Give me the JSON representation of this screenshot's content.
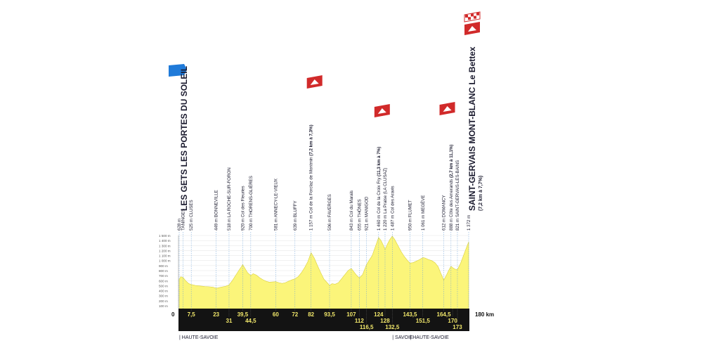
{
  "chart_data": {
    "type": "area",
    "title": "",
    "xlabel": "",
    "ylabel": "",
    "x_unit": "km",
    "xlim": [
      0,
      180
    ],
    "ylim": [
      100,
      1500
    ],
    "y_ticks": [
      "100 m",
      "200 m",
      "300 m",
      "400 m",
      "500 m",
      "600 m",
      "700 m",
      "800 m",
      "900 m",
      "1 000 m",
      "1 100 m",
      "1 200 m",
      "1 300 m",
      "1 400 m",
      "1 500 m"
    ],
    "fill_color": "#fbf57a",
    "km_start_label": "0",
    "km_end_label": "180 km",
    "start": {
      "name": "LES GETS LES PORTES DU SOLEIL",
      "elevation": "628 m"
    },
    "finish": {
      "name": "SAINT-GERVAIS MONT-BLANC Le Bettex",
      "sub": "(7,2 km à 7,7%)",
      "elevation": "1 372 m"
    },
    "profile": [
      [
        0,
        628
      ],
      [
        1,
        680
      ],
      [
        2.5,
        660
      ],
      [
        4,
        600
      ],
      [
        6,
        540
      ],
      [
        7.5,
        525
      ],
      [
        10,
        505
      ],
      [
        13,
        495
      ],
      [
        16,
        485
      ],
      [
        19,
        478
      ],
      [
        21,
        470
      ],
      [
        23,
        449
      ],
      [
        26,
        470
      ],
      [
        29,
        490
      ],
      [
        31,
        518
      ],
      [
        33,
        600
      ],
      [
        35,
        700
      ],
      [
        37,
        800
      ],
      [
        38.5,
        870
      ],
      [
        39.5,
        920
      ],
      [
        41,
        840
      ],
      [
        42.5,
        760
      ],
      [
        44.5,
        700
      ],
      [
        46,
        740
      ],
      [
        48,
        710
      ],
      [
        50,
        660
      ],
      [
        52,
        620
      ],
      [
        54,
        590
      ],
      [
        56,
        570
      ],
      [
        58,
        575
      ],
      [
        60,
        581
      ],
      [
        62,
        560
      ],
      [
        64,
        545
      ],
      [
        66,
        560
      ],
      [
        68,
        590
      ],
      [
        70,
        615
      ],
      [
        72,
        639
      ],
      [
        74,
        680
      ],
      [
        76,
        760
      ],
      [
        78,
        860
      ],
      [
        80,
        980
      ],
      [
        82,
        1157
      ],
      [
        84,
        1050
      ],
      [
        86,
        900
      ],
      [
        88,
        760
      ],
      [
        90,
        630
      ],
      [
        92,
        560
      ],
      [
        93.5,
        506
      ],
      [
        95,
        540
      ],
      [
        97,
        530
      ],
      [
        99,
        560
      ],
      [
        101,
        640
      ],
      [
        103,
        720
      ],
      [
        105,
        800
      ],
      [
        107,
        843
      ],
      [
        109,
        760
      ],
      [
        110.5,
        700
      ],
      [
        112,
        655
      ],
      [
        114,
        720
      ],
      [
        116.5,
        921
      ],
      [
        118,
        1000
      ],
      [
        120,
        1100
      ],
      [
        122,
        1280
      ],
      [
        124,
        1460
      ],
      [
        125.5,
        1400
      ],
      [
        127,
        1300
      ],
      [
        128,
        1220
      ],
      [
        129.5,
        1330
      ],
      [
        131,
        1420
      ],
      [
        132.5,
        1487
      ],
      [
        134,
        1420
      ],
      [
        136,
        1300
      ],
      [
        138,
        1180
      ],
      [
        140,
        1080
      ],
      [
        142,
        1000
      ],
      [
        143.5,
        950
      ],
      [
        145.5,
        960
      ],
      [
        147.5,
        990
      ],
      [
        149.5,
        1020
      ],
      [
        151.5,
        1061
      ],
      [
        153,
        1050
      ],
      [
        155,
        1020
      ],
      [
        157,
        1000
      ],
      [
        159,
        960
      ],
      [
        161,
        880
      ],
      [
        162.5,
        760
      ],
      [
        164.5,
        612
      ],
      [
        166,
        700
      ],
      [
        167.5,
        800
      ],
      [
        169,
        888
      ],
      [
        170,
        860
      ],
      [
        171.5,
        830
      ],
      [
        173,
        821
      ],
      [
        175,
        950
      ],
      [
        177,
        1120
      ],
      [
        178.5,
        1250
      ],
      [
        180,
        1372
      ]
    ],
    "points": [
      {
        "km": 0,
        "elevation": "628 m",
        "name": "",
        "tick": "",
        "row": 0
      },
      {
        "km": 2.5,
        "elevation": "",
        "name": "TANINGES",
        "tick": "",
        "row": 0
      },
      {
        "km": 7.5,
        "elevation": "525 m",
        "name": "CLUSES",
        "tick": "7,5",
        "row": 0
      },
      {
        "km": 23,
        "elevation": "449 m",
        "name": "BONNEVILLE",
        "tick": "23",
        "row": 0
      },
      {
        "km": 31,
        "elevation": "518 m",
        "name": "LA ROCHE-SUR-FORON",
        "tick": "31",
        "row": 1
      },
      {
        "km": 39.5,
        "elevation": "920 m",
        "name": "Col des Fleuries",
        "tick": "39,5",
        "row": 0
      },
      {
        "km": 44.5,
        "elevation": "700 m",
        "name": "THORENS-GLIÈRES",
        "tick": "44,5",
        "row": 1
      },
      {
        "km": 60,
        "elevation": "581 m",
        "name": "ANNECY-LE-VIEUX",
        "tick": "60",
        "row": 0
      },
      {
        "km": 72,
        "elevation": "639 m",
        "name": "BLUFFY",
        "tick": "72",
        "row": 0
      },
      {
        "km": 82,
        "elevation": "1 157 m",
        "name": "Col de la Forclaz de Montmin",
        "extra": "(7,2 km à 7,3%)",
        "tick": "82",
        "row": 0
      },
      {
        "km": 93.5,
        "elevation": "506 m",
        "name": "FAVERGES",
        "tick": "93,5",
        "row": 0
      },
      {
        "km": 107,
        "elevation": "843 m",
        "name": "Col du Marais",
        "tick": "107",
        "row": 0
      },
      {
        "km": 112,
        "elevation": "655 m",
        "name": "THÔNES",
        "tick": "112",
        "row": 1
      },
      {
        "km": 116.5,
        "elevation": "921 m",
        "name": "MANIGOD",
        "tick": "116,5",
        "row": 2
      },
      {
        "km": 124,
        "elevation": "1 460 m",
        "name": "Col de la Croix Fry",
        "extra": "(11,3 km à 7%)",
        "tick": "124",
        "row": 0
      },
      {
        "km": 128,
        "elevation": "1 220 m",
        "name": "La Praise (LA CLUSAZ)",
        "tick": "128",
        "row": 1
      },
      {
        "km": 132.5,
        "elevation": "1 487 m",
        "name": "Col des Aravis",
        "tick": "132,5",
        "row": 2
      },
      {
        "km": 143.5,
        "elevation": "950 m",
        "name": "FLUMET",
        "tick": "143,5",
        "row": 0
      },
      {
        "km": 151.5,
        "elevation": "1 061 m",
        "name": "MEGÈVE",
        "tick": "151,5",
        "row": 1
      },
      {
        "km": 164.5,
        "elevation": "612 m",
        "name": "DOMANCY",
        "tick": "164,5",
        "row": 0
      },
      {
        "km": 169,
        "elevation": "888 m",
        "name": "Côte des Amerands",
        "extra": "(2,7 km à 11,1%)",
        "tick": "",
        "row": 0
      },
      {
        "km": 170,
        "elevation": "",
        "name": "",
        "tick": "170",
        "row": 1
      },
      {
        "km": 173,
        "elevation": "821 m",
        "name": "SAINT-GERVAIS-LES-BAINS",
        "tick": "173",
        "row": 2
      },
      {
        "km": 180,
        "elevation": "1 372 m",
        "name": "",
        "tick": "",
        "row": 0
      }
    ],
    "climbs_km": [
      82,
      124,
      164.5,
      180
    ],
    "regions": [
      {
        "name": "| HAUTE-SAVOIE",
        "km": 0
      },
      {
        "name": "| SAVOIE",
        "km": 132.5
      },
      {
        "name": "| HAUTE-SAVOIE",
        "km": 143.5
      }
    ],
    "colors": {
      "band": "#131313",
      "tick_text": "#f2e86b",
      "marker_red": "#d12a2a",
      "start_blue": "#1f7ad9",
      "guide_line": "#6aa0d8",
      "text": "#1a1a2e"
    }
  }
}
